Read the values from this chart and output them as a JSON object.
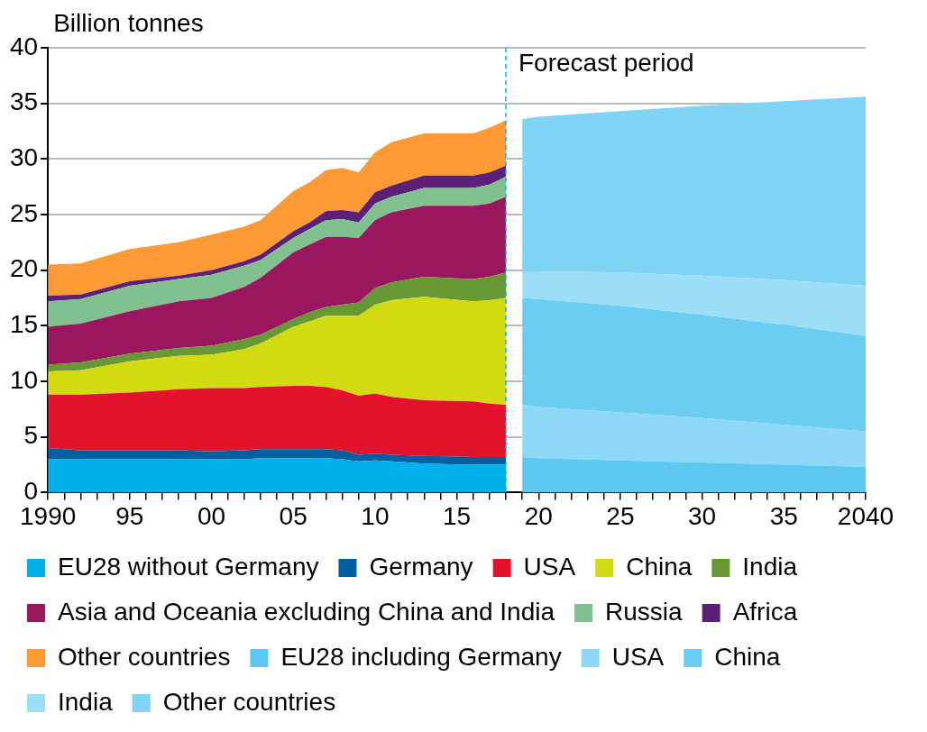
{
  "chart_data": {
    "type": "area",
    "ylabel": "Billion tonnes",
    "stacked": true,
    "x": [
      1990,
      1992,
      1995,
      1998,
      2000,
      2002,
      2003,
      2005,
      2006,
      2007,
      2008,
      2009,
      2010,
      2011,
      2013,
      2016,
      2017,
      2018,
      2019,
      2020,
      2025,
      2030,
      2035,
      2040
    ],
    "series": [
      {
        "name": "EU28 without Germany",
        "color": "#00b0eb",
        "values": [
          3.0,
          3.0,
          3.0,
          3.0,
          3.0,
          3.0,
          3.1,
          3.1,
          3.1,
          3.1,
          3.0,
          2.8,
          2.9,
          2.8,
          2.6,
          2.5,
          2.5,
          2.5,
          null,
          null,
          null,
          null,
          null,
          null
        ]
      },
      {
        "name": "Germany",
        "color": "#005f9e",
        "values": [
          1.0,
          0.8,
          0.8,
          0.8,
          0.7,
          0.8,
          0.8,
          0.8,
          0.8,
          0.8,
          0.8,
          0.6,
          0.6,
          0.6,
          0.7,
          0.7,
          0.7,
          0.7,
          null,
          null,
          null,
          null,
          null,
          null
        ]
      },
      {
        "name": "USA",
        "color": "#e4132c",
        "values": [
          4.8,
          5.0,
          5.2,
          5.5,
          5.7,
          5.6,
          5.6,
          5.7,
          5.7,
          5.6,
          5.4,
          5.3,
          5.4,
          5.2,
          5.0,
          5.0,
          4.8,
          4.7,
          null,
          null,
          null,
          null,
          null,
          null
        ]
      },
      {
        "name": "China",
        "color": "#d2db12",
        "values": [
          2.1,
          2.2,
          2.8,
          3.0,
          3.0,
          3.5,
          3.9,
          5.3,
          5.8,
          6.4,
          6.7,
          7.2,
          8.0,
          8.7,
          9.3,
          9.0,
          9.3,
          9.6,
          null,
          null,
          null,
          null,
          null,
          null
        ]
      },
      {
        "name": "India",
        "color": "#669933",
        "values": [
          0.6,
          0.7,
          0.7,
          0.7,
          0.8,
          0.9,
          0.8,
          0.7,
          0.8,
          0.8,
          1.0,
          1.2,
          1.5,
          1.6,
          1.8,
          2.0,
          2.1,
          2.3,
          null,
          null,
          null,
          null,
          null,
          null
        ]
      },
      {
        "name": "Asia and Oceania excluding China and India",
        "color": "#9a1760",
        "values": [
          3.4,
          3.5,
          3.8,
          4.2,
          4.3,
          4.7,
          5.1,
          6.0,
          6.1,
          6.3,
          6.1,
          5.8,
          6.1,
          6.3,
          6.4,
          6.6,
          6.6,
          6.8,
          null,
          null,
          null,
          null,
          null,
          null
        ]
      },
      {
        "name": "Russia",
        "color": "#80c18f",
        "values": [
          2.3,
          2.2,
          2.3,
          2.0,
          2.1,
          1.9,
          1.6,
          1.3,
          1.4,
          1.5,
          1.6,
          1.4,
          1.5,
          1.4,
          1.6,
          1.6,
          1.7,
          1.8,
          null,
          null,
          null,
          null,
          null,
          null
        ]
      },
      {
        "name": "Africa",
        "color": "#5c2078",
        "values": [
          0.5,
          0.4,
          0.4,
          0.3,
          0.4,
          0.4,
          0.5,
          0.6,
          0.6,
          0.8,
          0.8,
          0.9,
          1.0,
          1.0,
          1.1,
          1.1,
          1.1,
          1.0,
          null,
          null,
          null,
          null,
          null,
          null
        ]
      },
      {
        "name": "Other countries",
        "color": "#fd9a35",
        "values": [
          2.8,
          2.8,
          2.9,
          3.0,
          3.2,
          3.1,
          3.1,
          3.6,
          3.6,
          3.7,
          3.8,
          3.6,
          3.6,
          3.9,
          3.8,
          3.8,
          4.0,
          4.1,
          null,
          null,
          null,
          null,
          null,
          null
        ]
      },
      {
        "name": "EU28 including Germany",
        "color": "#5cc8f2",
        "values": [
          null,
          null,
          null,
          null,
          null,
          null,
          null,
          null,
          null,
          null,
          null,
          null,
          null,
          null,
          null,
          null,
          null,
          null,
          3.2,
          3.1,
          2.9,
          2.7,
          2.5,
          2.3
        ]
      },
      {
        "name": "USA",
        "color": "#8cd8f6",
        "values": [
          null,
          null,
          null,
          null,
          null,
          null,
          null,
          null,
          null,
          null,
          null,
          null,
          null,
          null,
          null,
          null,
          null,
          null,
          4.7,
          4.6,
          4.3,
          4.0,
          3.6,
          3.2
        ]
      },
      {
        "name": "China",
        "color": "#6ccdf3",
        "values": [
          null,
          null,
          null,
          null,
          null,
          null,
          null,
          null,
          null,
          null,
          null,
          null,
          null,
          null,
          null,
          null,
          null,
          null,
          9.6,
          9.7,
          9.6,
          9.3,
          9.0,
          8.6
        ]
      },
      {
        "name": "India",
        "color": "#9cdef7",
        "values": [
          null,
          null,
          null,
          null,
          null,
          null,
          null,
          null,
          null,
          null,
          null,
          null,
          null,
          null,
          null,
          null,
          null,
          null,
          2.4,
          2.5,
          3.0,
          3.5,
          4.0,
          4.5
        ]
      },
      {
        "name": "Other countries",
        "color": "#7fd4f5",
        "values": [
          null,
          null,
          null,
          null,
          null,
          null,
          null,
          null,
          null,
          null,
          null,
          null,
          null,
          null,
          null,
          null,
          null,
          null,
          13.7,
          13.9,
          14.5,
          15.3,
          16.1,
          17.0
        ]
      }
    ],
    "xlim": [
      1990,
      2040
    ],
    "xticks": [
      {
        "value": 1990,
        "label": "1990"
      },
      {
        "value": 1991,
        "label": null
      },
      {
        "value": 1992,
        "label": null
      },
      {
        "value": 1993,
        "label": null
      },
      {
        "value": 1994,
        "label": null
      },
      {
        "value": 1995,
        "label": "95"
      },
      {
        "value": 1996,
        "label": null
      },
      {
        "value": 1997,
        "label": null
      },
      {
        "value": 1998,
        "label": null
      },
      {
        "value": 1999,
        "label": null
      },
      {
        "value": 2000,
        "label": "00"
      },
      {
        "value": 2001,
        "label": null
      },
      {
        "value": 2002,
        "label": null
      },
      {
        "value": 2003,
        "label": null
      },
      {
        "value": 2004,
        "label": null
      },
      {
        "value": 2005,
        "label": "05"
      },
      {
        "value": 2006,
        "label": null
      },
      {
        "value": 2007,
        "label": null
      },
      {
        "value": 2008,
        "label": null
      },
      {
        "value": 2009,
        "label": null
      },
      {
        "value": 2010,
        "label": "10"
      },
      {
        "value": 2011,
        "label": null
      },
      {
        "value": 2012,
        "label": null
      },
      {
        "value": 2013,
        "label": null
      },
      {
        "value": 2014,
        "label": null
      },
      {
        "value": 2015,
        "label": "15"
      },
      {
        "value": 2016,
        "label": null
      },
      {
        "value": 2017,
        "label": null
      },
      {
        "value": 2018,
        "label": null
      },
      {
        "value": 2019,
        "label": null
      },
      {
        "value": 2020,
        "label": "20"
      },
      {
        "value": 2021,
        "label": null
      },
      {
        "value": 2022,
        "label": null
      },
      {
        "value": 2023,
        "label": null
      },
      {
        "value": 2024,
        "label": null
      },
      {
        "value": 2025,
        "label": "25"
      },
      {
        "value": 2026,
        "label": null
      },
      {
        "value": 2027,
        "label": null
      },
      {
        "value": 2028,
        "label": null
      },
      {
        "value": 2029,
        "label": null
      },
      {
        "value": 2030,
        "label": "30"
      },
      {
        "value": 2031,
        "label": null
      },
      {
        "value": 2032,
        "label": null
      },
      {
        "value": 2033,
        "label": null
      },
      {
        "value": 2034,
        "label": null
      },
      {
        "value": 2035,
        "label": "35"
      },
      {
        "value": 2036,
        "label": null
      },
      {
        "value": 2037,
        "label": null
      },
      {
        "value": 2038,
        "label": null
      },
      {
        "value": 2039,
        "label": null
      },
      {
        "value": 2040,
        "label": "2040"
      }
    ],
    "ylim": [
      0,
      40
    ],
    "yticks": [
      0,
      5,
      10,
      15,
      20,
      25,
      30,
      35,
      40
    ],
    "ref_lines": [
      {
        "axis": "x",
        "value": 2018,
        "label": "Forecast period",
        "color": "#00b0f0",
        "line_style": "dashed"
      }
    ],
    "grid": "y",
    "legend": "bottom"
  }
}
